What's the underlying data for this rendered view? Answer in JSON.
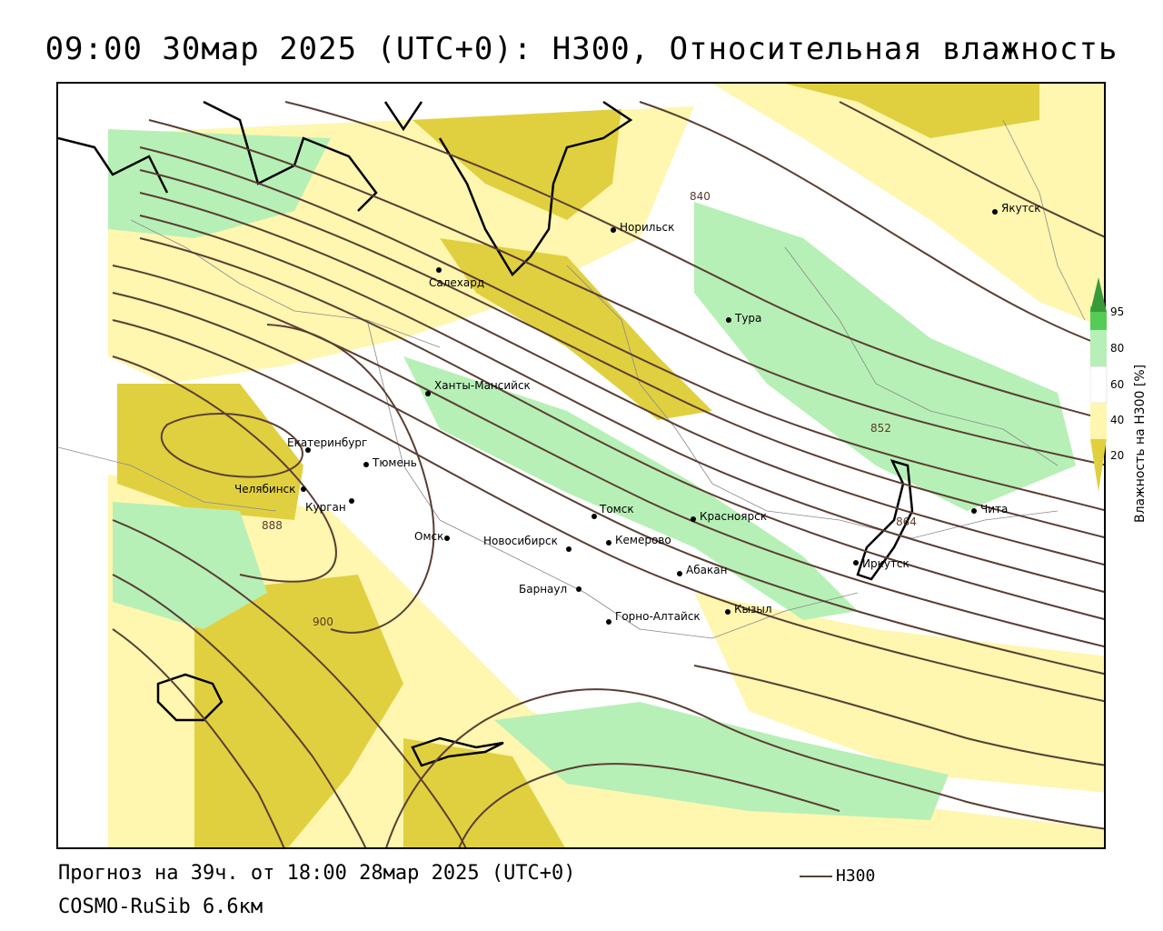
{
  "title": "09:00 30мар 2025 (UTC+0): H300, Относительная влажность",
  "forecast_info": "Прогноз на 39ч. от 18:00 28мар 2025 (UTC+0)",
  "model": "COSMO-RuSib 6.6км",
  "legend": {
    "line_label": "H300",
    "line_color": "#5a3e33"
  },
  "colorbar": {
    "title": "Влажность на Н300 [%]",
    "ticks": [
      "95",
      "80",
      "60",
      "40",
      "20"
    ],
    "colors": {
      "very_high": "#3a9a3a",
      "high": "#55cc55",
      "moderate": "#b6f0b6",
      "neutral": "#ffffff",
      "low": "#fff6b0",
      "very_low": "#e0d040"
    }
  },
  "isolines": [
    "840",
    "852",
    "864",
    "888",
    "900"
  ],
  "cities": [
    {
      "name": "Якутск"
    },
    {
      "name": "Норильск"
    },
    {
      "name": "Салехард"
    },
    {
      "name": "Тура"
    },
    {
      "name": "Ханты-Мансийск"
    },
    {
      "name": "Екатеринбург"
    },
    {
      "name": "Тюмень"
    },
    {
      "name": "Челябинск"
    },
    {
      "name": "Курган"
    },
    {
      "name": "Омск"
    },
    {
      "name": "Томск"
    },
    {
      "name": "Красноярск"
    },
    {
      "name": "Новосибирск"
    },
    {
      "name": "Кемерово"
    },
    {
      "name": "Абакан"
    },
    {
      "name": "Барнаул"
    },
    {
      "name": "Горно-Алтайск"
    },
    {
      "name": "Кызыл"
    },
    {
      "name": "Иркутск"
    },
    {
      "name": "Чита"
    }
  ]
}
